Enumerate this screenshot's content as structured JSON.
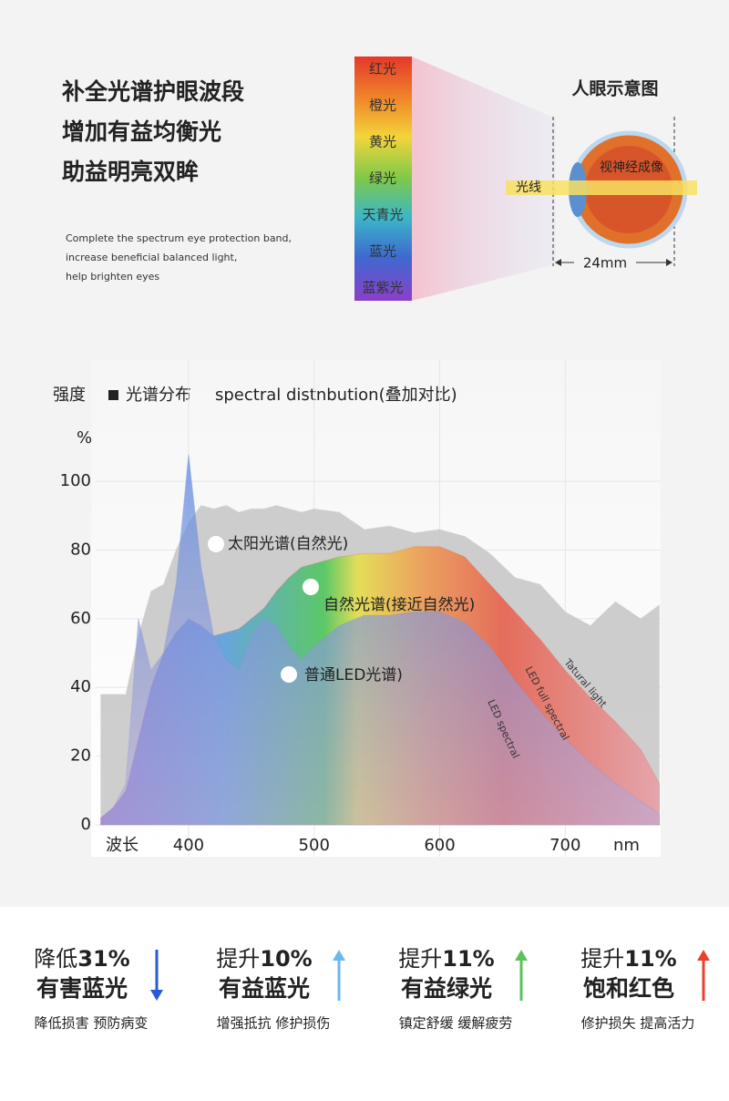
{
  "header": {
    "title_lines": [
      "补全光谱护眼波段",
      "增加有益均衡光",
      "助益明亮双眸"
    ],
    "subtitle_lines": [
      "Complete the spectrum eye protection band,",
      "increase beneficial balanced light,",
      "help brighten eyes"
    ]
  },
  "spectrum_bar": {
    "labels": [
      "红光",
      "橙光",
      "黄光",
      "绿光",
      "天青光",
      "蓝光",
      "蓝紫光"
    ]
  },
  "eye_diagram": {
    "title": "人眼示意图",
    "light_label": "光线",
    "image_label": "视神经成像",
    "size_label": "24mm"
  },
  "chart_data": {
    "type": "area",
    "y_label": "强度",
    "title": "光谱分布",
    "subtitle": "spectral distnbution(叠加对比)",
    "y_unit": "%",
    "x_label": "波长",
    "x_unit": "nm",
    "x": [
      330,
      340,
      350,
      360,
      370,
      380,
      390,
      400,
      410,
      420,
      430,
      440,
      450,
      460,
      470,
      480,
      490,
      500,
      520,
      540,
      560,
      580,
      600,
      620,
      640,
      660,
      680,
      700,
      720,
      740,
      760,
      775
    ],
    "xlim": [
      326,
      776
    ],
    "ylim": [
      0,
      130
    ],
    "yticks": [
      0,
      20,
      40,
      60,
      80,
      100
    ],
    "xticks": [
      400,
      500,
      600,
      700
    ],
    "grid": true,
    "series": [
      {
        "name": "太阳光谱(自然光)",
        "label_en": "Tatural light",
        "color": "#c9c9c9",
        "values": [
          38,
          38,
          38,
          55,
          68,
          70,
          80,
          88,
          93,
          92,
          93,
          91,
          92,
          92,
          93,
          92,
          91,
          92,
          91,
          86,
          87,
          85,
          86,
          84,
          79,
          72,
          70,
          62,
          58,
          65,
          60,
          64
        ]
      },
      {
        "name": "自然光谱(接近自然光)",
        "label_en": "LED full spectral",
        "color": "#e8604c",
        "values": [
          2,
          5,
          10,
          25,
          40,
          50,
          56,
          60,
          58,
          55,
          56,
          57,
          60,
          63,
          68,
          72,
          75,
          76,
          78,
          79,
          79,
          81,
          81,
          78,
          70,
          62,
          54,
          45,
          37,
          30,
          22,
          12
        ]
      },
      {
        "name": "普通LED光谱)",
        "label_en": "LED spectral",
        "color": "#7e8fd6",
        "values": [
          2,
          5,
          12,
          60,
          45,
          50,
          70,
          108,
          75,
          55,
          48,
          45,
          55,
          60,
          58,
          52,
          48,
          52,
          58,
          61,
          61,
          62,
          62,
          59,
          52,
          42,
          33,
          25,
          18,
          12,
          7,
          3
        ]
      }
    ]
  },
  "features": [
    {
      "verb": "降低",
      "amount": "31%",
      "target": "有害蓝光",
      "note": "降低损害 预防病变",
      "arrow_color": "#2a5bd7",
      "direction": "down"
    },
    {
      "verb": "提升",
      "amount": "10%",
      "target": "有益蓝光",
      "note": "增强抵抗 修护损伤",
      "arrow_color": "#6cb8ee",
      "direction": "up"
    },
    {
      "verb": "提升",
      "amount": "11%",
      "target": "有益绿光",
      "note": "镇定舒缓 缓解疲劳",
      "arrow_color": "#5cc35a",
      "direction": "up"
    },
    {
      "verb": "提升",
      "amount": "11%",
      "target": "饱和红色",
      "note": "修护损失 提高活力",
      "arrow_color": "#e8412c",
      "direction": "up"
    }
  ]
}
